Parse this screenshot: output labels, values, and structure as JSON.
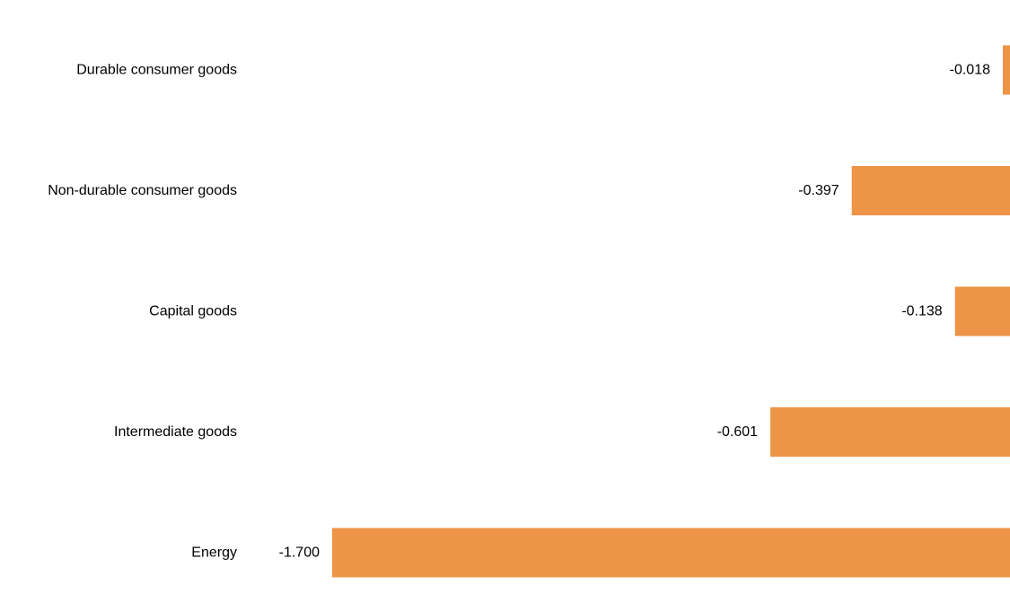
{
  "chart_data": {
    "type": "bar",
    "orientation": "horizontal",
    "categories": [
      "Durable consumer goods",
      "Non-durable consumer goods",
      "Capital goods",
      "Intermediate goods",
      "Energy"
    ],
    "values": [
      -0.018,
      -0.397,
      -0.138,
      -0.601,
      -1.7
    ],
    "value_labels": [
      "-0.018",
      "-0.397",
      "-0.138",
      "-0.601",
      "-1.700"
    ],
    "xlim": [
      -1.7,
      0
    ],
    "grid": false,
    "legend": "none",
    "bar_color": "#ED9447"
  }
}
